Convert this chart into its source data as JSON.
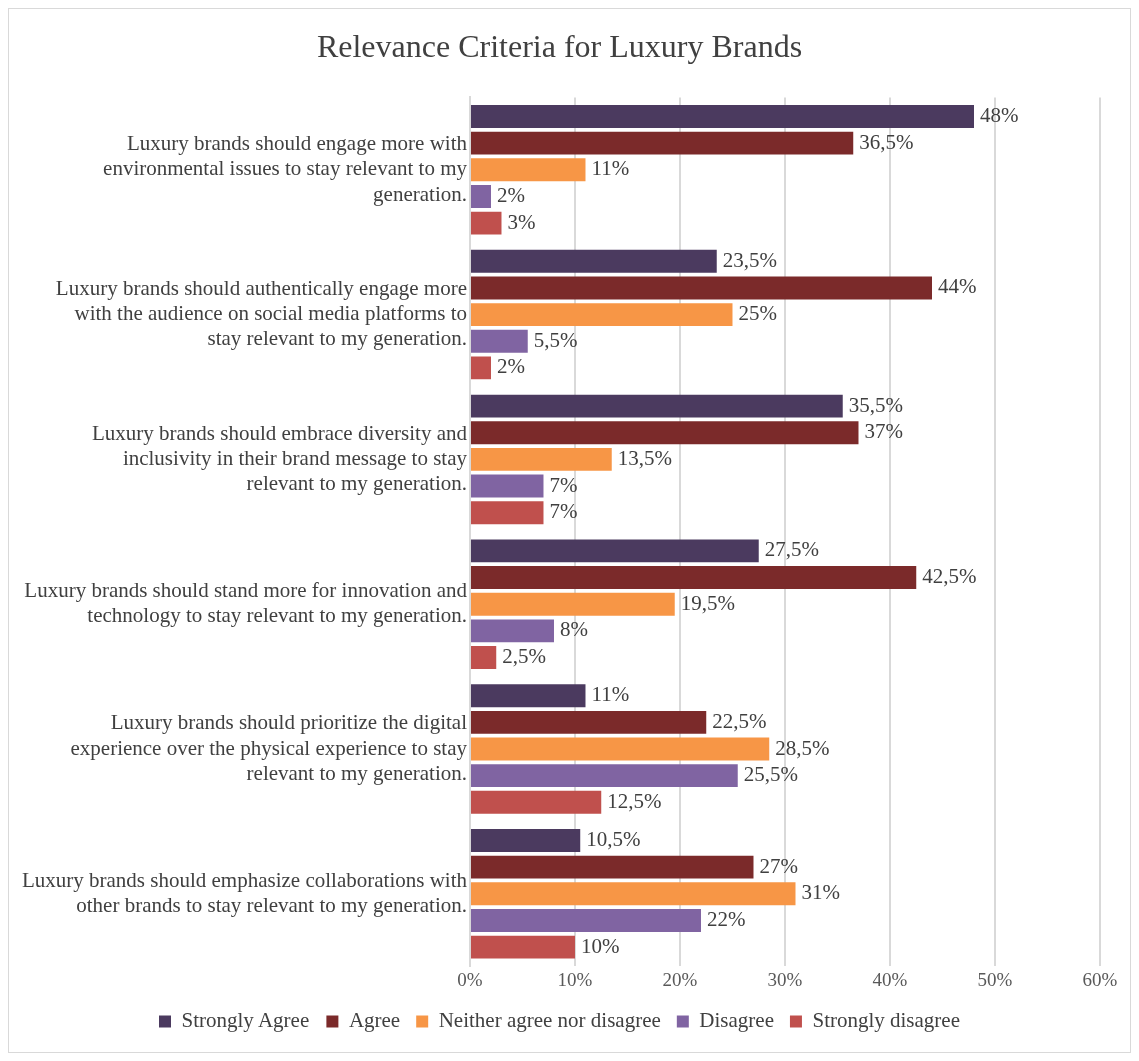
{
  "chart_data": {
    "type": "bar",
    "orientation": "horizontal",
    "title": "Relevance Criteria for Luxury Brands",
    "categories": [
      "Luxury brands should engage more with environmental issues to stay relevant to my generation.",
      "Luxury brands should authentically engage more with the audience on social media platforms to stay relevant to my generation.",
      "Luxury brands should embrace diversity and inclusivity in their brand message to stay relevant to my generation.",
      "Luxury brands should stand more for innovation and technology to stay relevant to my generation.",
      "Luxury brands should prioritize the digital experience over the physical experience to stay relevant to my generation.",
      "Luxury brands should emphasize collaborations with other brands to stay relevant to my generation."
    ],
    "series": [
      {
        "name": "Strongly Agree",
        "color": "#4b3a5f",
        "values": [
          48,
          23.5,
          35.5,
          27.5,
          11,
          10.5
        ],
        "value_labels": [
          "48%",
          "23,5%",
          "35,5%",
          "27,5%",
          "11%",
          "10,5%"
        ]
      },
      {
        "name": "Agree",
        "color": "#7b2a2a",
        "values": [
          36.5,
          44,
          37,
          42.5,
          22.5,
          27
        ],
        "value_labels": [
          "36,5%",
          "44%",
          "37%",
          "42,5%",
          "22,5%",
          "27%"
        ]
      },
      {
        "name": "Neither agree nor disagree",
        "color": "#f79646",
        "values": [
          11,
          25,
          13.5,
          19.5,
          28.5,
          31
        ],
        "value_labels": [
          "11%",
          "25%",
          "13,5%",
          "19,5%",
          "28,5%",
          "31%"
        ]
      },
      {
        "name": "Disagree",
        "color": "#8064a2",
        "values": [
          2,
          5.5,
          7,
          8,
          25.5,
          22
        ],
        "value_labels": [
          "2%",
          "5,5%",
          "7%",
          "8%",
          "25,5%",
          "22%"
        ]
      },
      {
        "name": "Strongly disagree",
        "color": "#c0504d",
        "values": [
          3,
          2,
          7,
          2.5,
          12.5,
          10
        ],
        "value_labels": [
          "3%",
          "2%",
          "7%",
          "2,5%",
          "12,5%",
          "10%"
        ]
      }
    ],
    "xlim": [
      0,
      60
    ],
    "xticks": [
      {
        "value": 0,
        "label": "0%"
      },
      {
        "value": 10,
        "label": "10%"
      },
      {
        "value": 20,
        "label": "20%"
      },
      {
        "value": 30,
        "label": "30%"
      },
      {
        "value": 40,
        "label": "40%"
      },
      {
        "value": 50,
        "label": "50%"
      },
      {
        "value": 60,
        "label": "60%"
      }
    ],
    "grid": "x",
    "legend": "bottom"
  }
}
